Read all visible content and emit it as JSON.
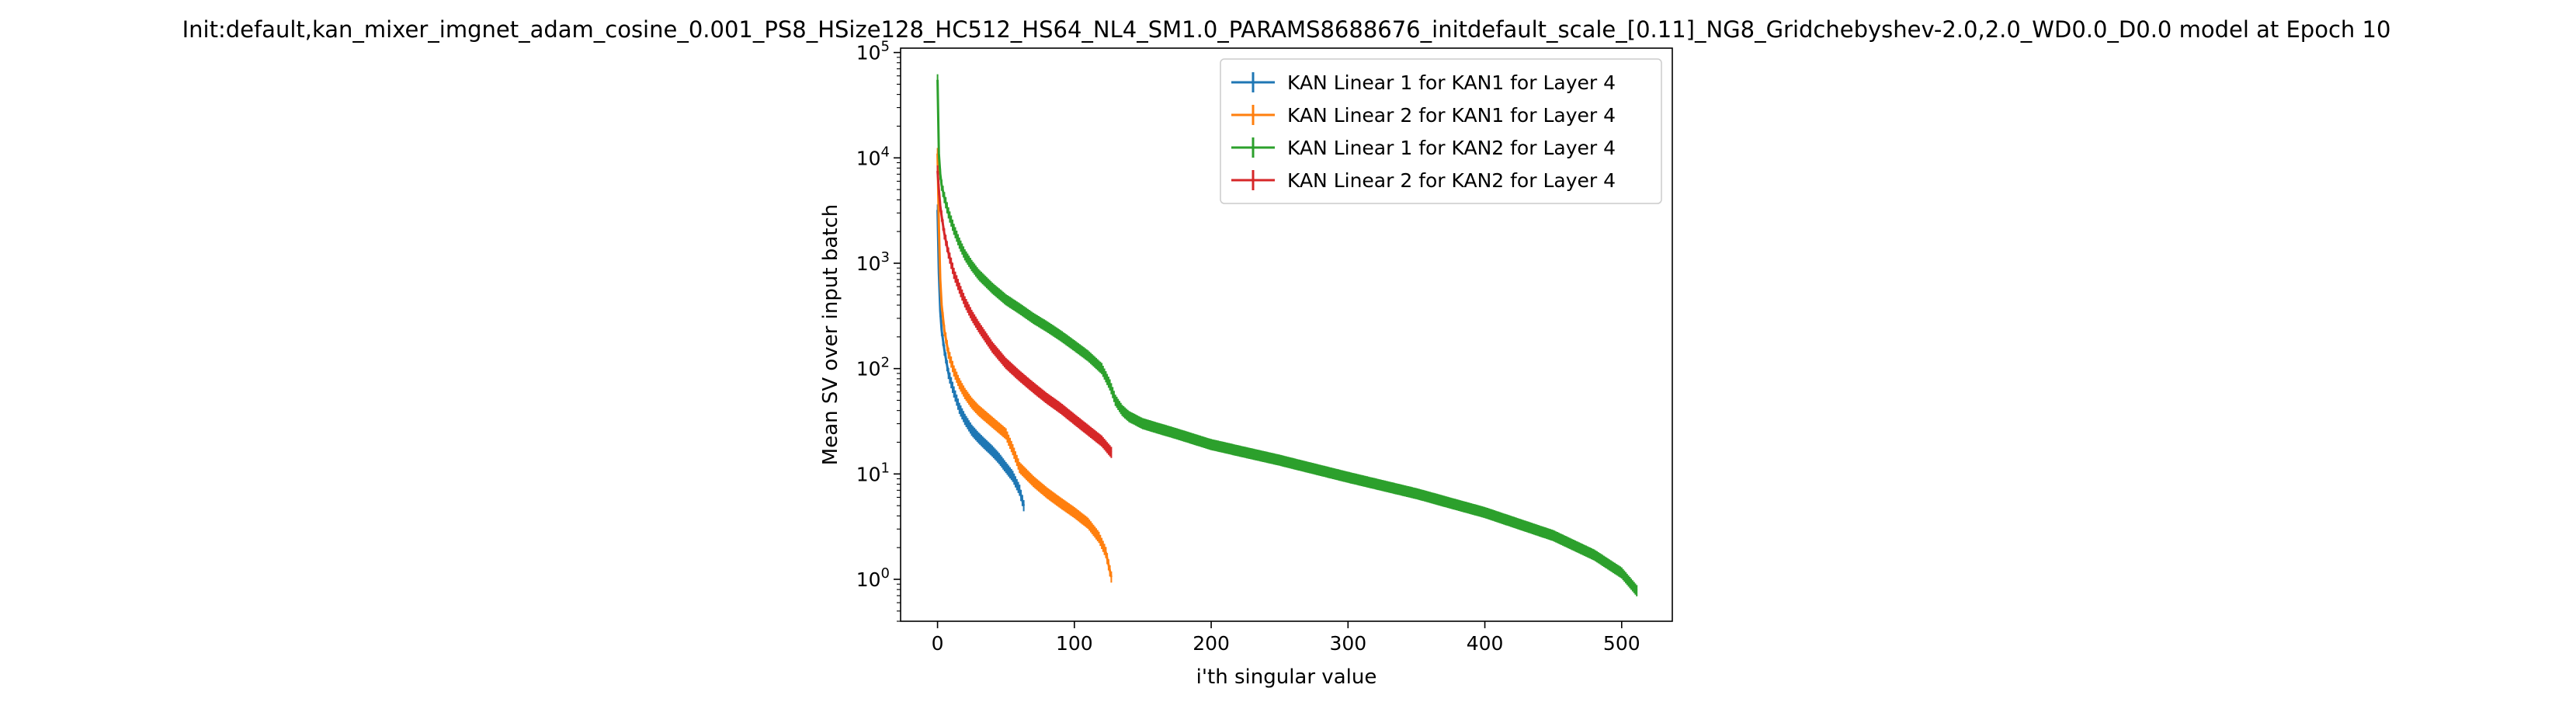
{
  "chart_data": {
    "type": "line",
    "title": "Init:default,kan_mixer_imgnet_adam_cosine_0.001_PS8_HSize128_HC512_HS64_NL4_SM1.0_PARAMS8688676_initdefault_scale_[0.11]_NG8_Gridchebyshev-2.0,2.0_WD0.0_D0.0 model at Epoch 10",
    "xlabel": "i'th singular value",
    "ylabel": "Mean SV over input batch",
    "xlim": [
      -27,
      537
    ],
    "ylim": [
      0.4,
      110000
    ],
    "yscale": "log",
    "grid": false,
    "legend_position": "top-right",
    "x_ticks": [
      0,
      100,
      200,
      300,
      400,
      500
    ],
    "y_ticks": [
      {
        "value": 1,
        "label": "10^0"
      },
      {
        "value": 10,
        "label": "10^1"
      },
      {
        "value": 100,
        "label": "10^2"
      },
      {
        "value": 1000,
        "label": "10^3"
      },
      {
        "value": 10000,
        "label": "10^4"
      },
      {
        "value": 100000,
        "label": "10^5"
      }
    ],
    "series": [
      {
        "name": "KAN Linear 1 for KAN1 for Layer 4",
        "color": "#1f77b4",
        "error_bars": true,
        "x": [
          0,
          1,
          2,
          3,
          5,
          8,
          12,
          16,
          20,
          25,
          30,
          35,
          40,
          45,
          50,
          55,
          60,
          63
        ],
        "y": [
          3200,
          800,
          350,
          230,
          150,
          90,
          60,
          42,
          33,
          26,
          22,
          19,
          16.5,
          14,
          11.5,
          9.5,
          7,
          5
        ]
      },
      {
        "name": "KAN Linear 2 for KAN1 for Layer 4",
        "color": "#ff7f0e",
        "error_bars": true,
        "x": [
          0,
          1,
          2,
          3,
          5,
          8,
          12,
          16,
          20,
          25,
          30,
          40,
          50,
          55,
          60,
          70,
          80,
          90,
          100,
          110,
          118,
          123,
          127
        ],
        "y": [
          11000,
          2300,
          700,
          400,
          230,
          140,
          95,
          72,
          58,
          47,
          40,
          31,
          24,
          17,
          11.5,
          8.5,
          6.6,
          5.3,
          4.3,
          3.4,
          2.5,
          1.8,
          1.05
        ]
      },
      {
        "name": "KAN Linear 1 for KAN2 for Layer 4",
        "color": "#2ca02c",
        "error_bars": true,
        "x": [
          0,
          1,
          2,
          3,
          5,
          8,
          12,
          16,
          20,
          25,
          30,
          40,
          50,
          60,
          70,
          80,
          90,
          100,
          110,
          120,
          126,
          130,
          135,
          140,
          150,
          175,
          200,
          250,
          300,
          350,
          400,
          450,
          480,
          500,
          511
        ],
        "y": [
          55000,
          11000,
          7000,
          5500,
          4200,
          3000,
          2100,
          1550,
          1200,
          950,
          780,
          580,
          450,
          370,
          300,
          250,
          205,
          165,
          132,
          100,
          70,
          50,
          40,
          35,
          30,
          24,
          19,
          13.5,
          9.3,
          6.5,
          4.3,
          2.6,
          1.7,
          1.15,
          0.78
        ]
      },
      {
        "name": "KAN Linear 2 for KAN2 for Layer 4",
        "color": "#d62728",
        "error_bars": true,
        "x": [
          0,
          1,
          2,
          3,
          5,
          8,
          12,
          16,
          20,
          25,
          30,
          40,
          50,
          60,
          70,
          80,
          90,
          100,
          110,
          120,
          127
        ],
        "y": [
          7500,
          5000,
          3500,
          2800,
          1900,
          1250,
          800,
          580,
          430,
          320,
          250,
          160,
          112,
          85,
          66,
          52,
          42,
          33,
          26,
          20.5,
          16
        ]
      }
    ]
  }
}
